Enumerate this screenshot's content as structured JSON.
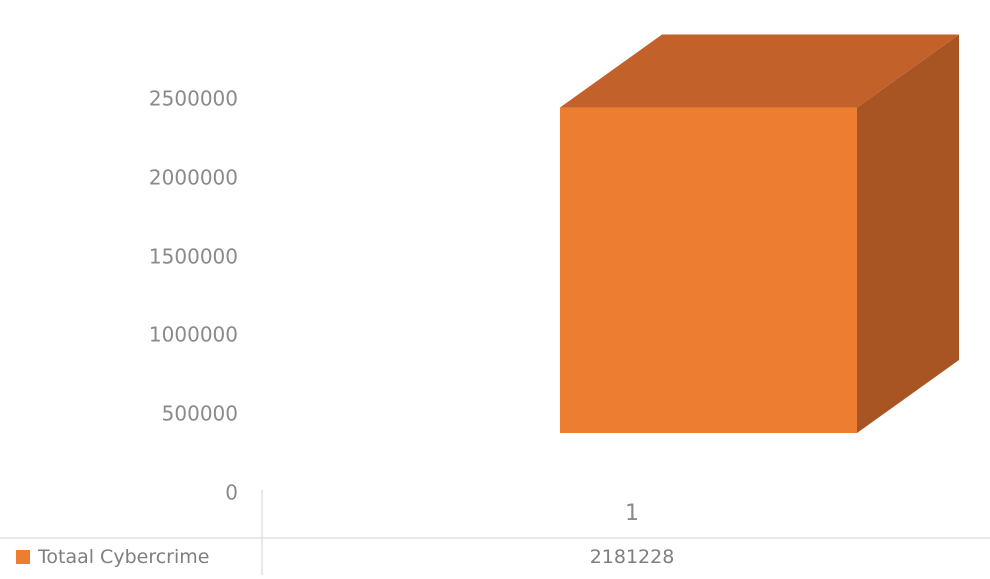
{
  "chart_data": {
    "type": "bar",
    "style": "3d-column-with-data-table",
    "categories": [
      "1"
    ],
    "series": [
      {
        "name": "Totaal Cybercrime",
        "values": [
          2181228
        ],
        "color": "#ED7D31"
      }
    ],
    "y_ticks": [
      "0",
      "500000",
      "1000000",
      "1500000",
      "2000000",
      "2500000"
    ],
    "ylim": [
      0,
      2500000
    ],
    "grid": false,
    "legend": "data-table",
    "data_table": {
      "rows": [
        {
          "label": "Totaal Cybercrime",
          "values": [
            "2181228"
          ]
        }
      ]
    }
  }
}
